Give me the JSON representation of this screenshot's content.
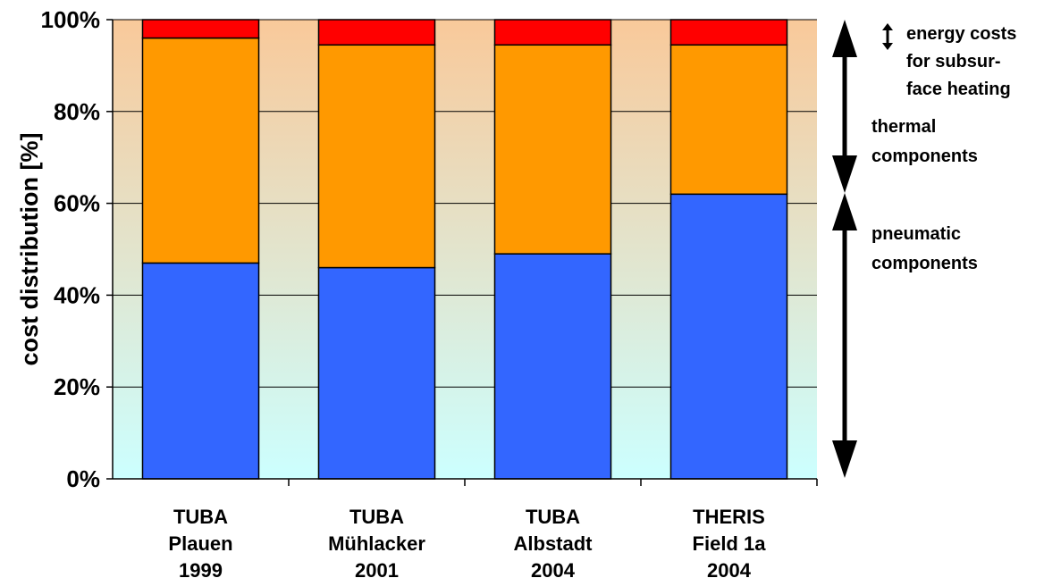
{
  "chart_data": {
    "type": "bar",
    "stacked": true,
    "categories": [
      [
        "TUBA",
        "Plauen",
        "1999"
      ],
      [
        "TUBA",
        "Mühlacker",
        "2001"
      ],
      [
        "TUBA",
        "Albstadt",
        "2004"
      ],
      [
        "THERIS",
        "Field 1a",
        "2004"
      ]
    ],
    "series": [
      {
        "key": "pneumatic",
        "values": [
          47,
          46,
          49,
          62
        ],
        "color": "#3366ff"
      },
      {
        "key": "thermal",
        "values": [
          49,
          48.5,
          45.5,
          32.5
        ],
        "color": "#ff9900"
      },
      {
        "key": "energy",
        "values": [
          4,
          5.5,
          5.5,
          5.5
        ],
        "color": "#ff0000"
      }
    ],
    "ylabel": "cost distribution [%]",
    "ylim": [
      0,
      100
    ],
    "yticks": [
      "0%",
      "20%",
      "40%",
      "60%",
      "80%",
      "100%"
    ],
    "grid": true,
    "background_gradient": {
      "top": "#f9c99a",
      "bottom": "#ccffff"
    },
    "annotations": {
      "energy": [
        "energy costs",
        "for subsur-",
        "face heating"
      ],
      "thermal": [
        "thermal",
        "components"
      ],
      "pneumatic": [
        "pneumatic",
        "components"
      ]
    }
  }
}
